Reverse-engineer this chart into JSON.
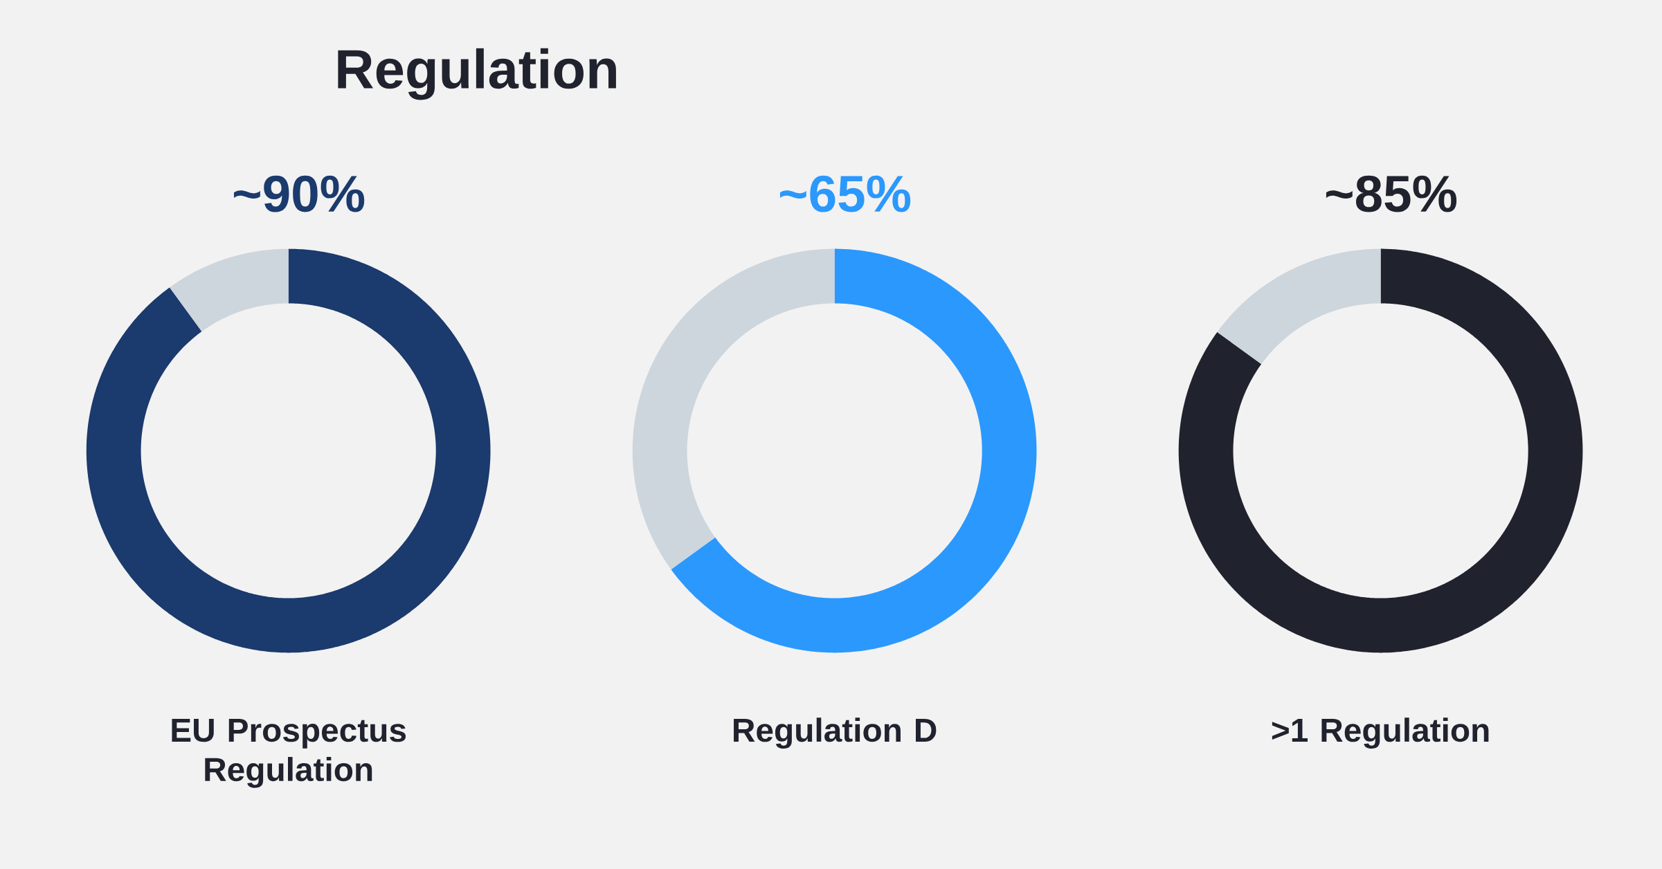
{
  "chart_data": [
    {
      "type": "donut",
      "title": "Regulation",
      "xlabel": "EU Prospectus Regulation",
      "categories": [
        null,
        null
      ],
      "values": [
        90,
        10
      ],
      "colors": [
        "#1b3a6d",
        "#cdd5dd"
      ],
      "value_labels": [
        "~90%",
        null
      ]
    },
    {
      "type": "donut",
      "xlabel": "Regulation D",
      "categories": [
        null,
        null
      ],
      "values": [
        65,
        35
      ],
      "colors": [
        "#2b98fd",
        "#cdd5dd"
      ],
      "value_labels": [
        "~65%",
        null
      ]
    },
    {
      "type": "donut",
      "xlabel": ">1 Regulation",
      "categories": [
        null,
        null
      ],
      "values": [
        85,
        15
      ],
      "colors": [
        "#20232e",
        "#cdd5dd"
      ],
      "value_labels": [
        "~85%",
        null
      ]
    }
  ]
}
